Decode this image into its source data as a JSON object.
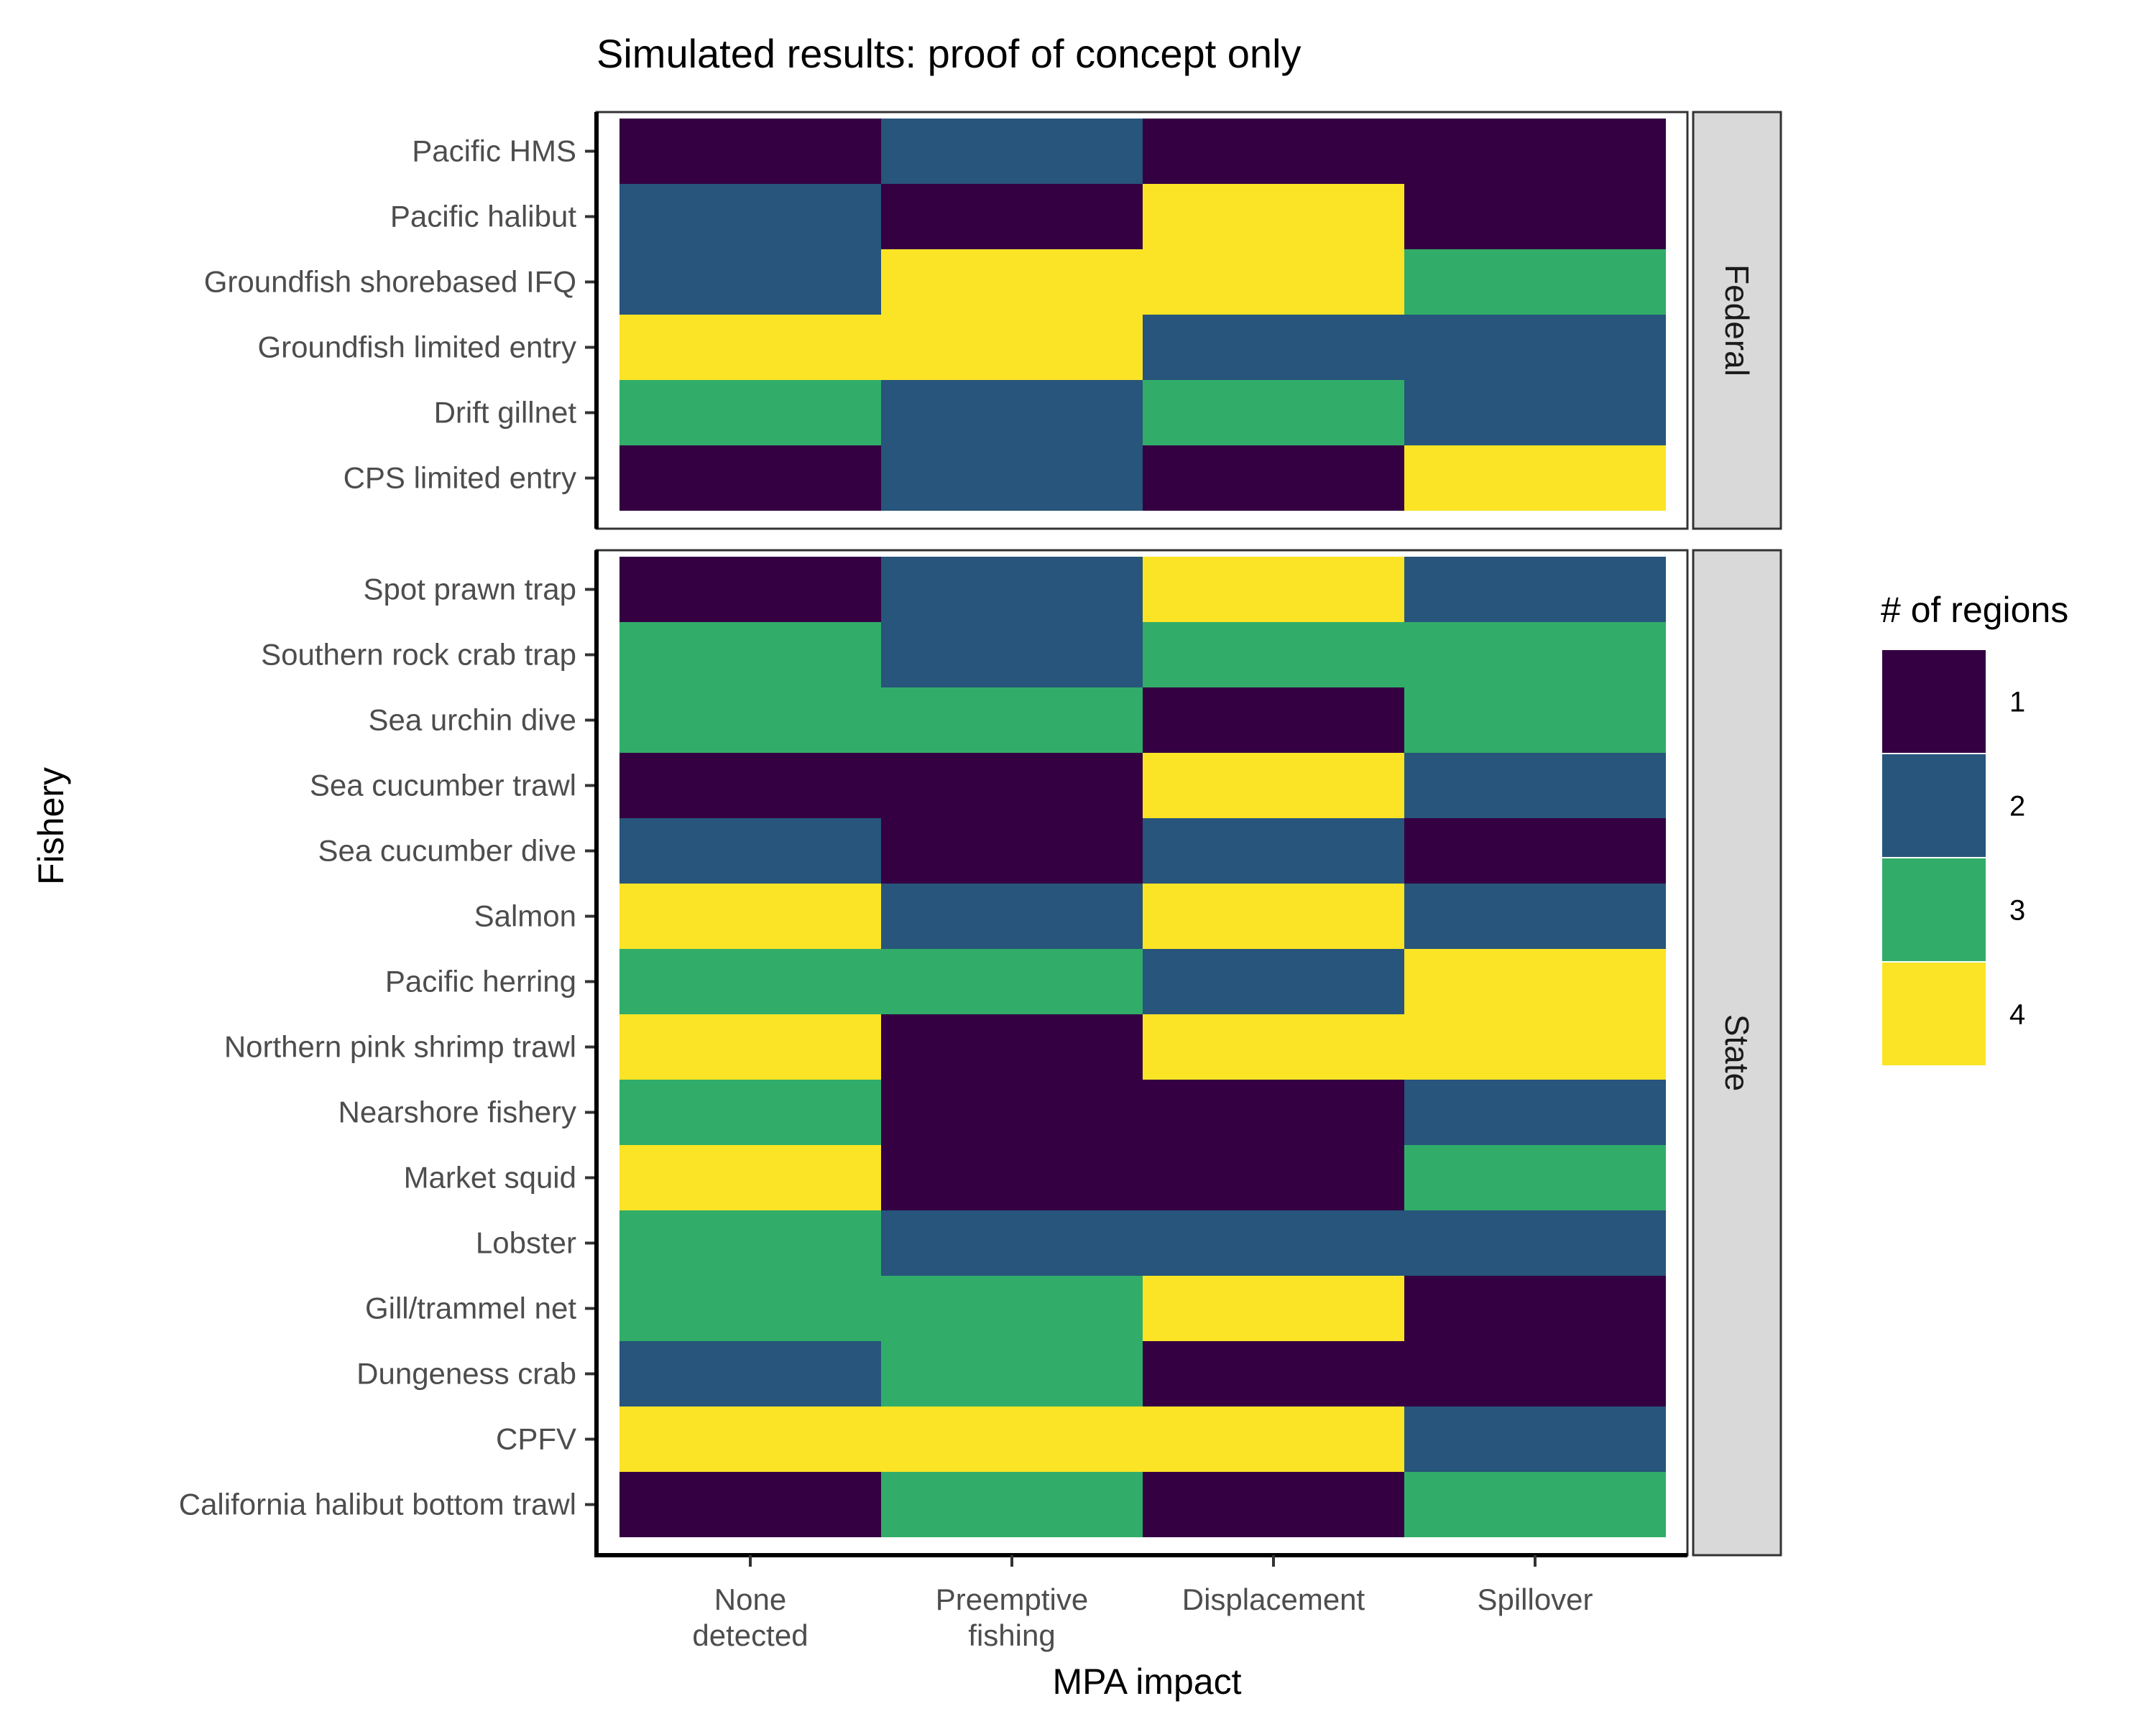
{
  "chart_data": {
    "type": "heatmap",
    "title": "Simulated results: proof of concept only",
    "xlabel": "MPA impact",
    "ylabel": "Fishery",
    "x_categories": [
      "None\ndetected",
      "Preemptive\nfishing",
      "Displacement",
      "Spillover"
    ],
    "facets": [
      {
        "name": "Federal",
        "rows": [
          {
            "label": "Pacific HMS",
            "values": [
              1,
              2,
              1,
              1
            ]
          },
          {
            "label": "Pacific halibut",
            "values": [
              2,
              1,
              4,
              1
            ]
          },
          {
            "label": "Groundfish shorebased IFQ",
            "values": [
              2,
              4,
              4,
              3
            ]
          },
          {
            "label": "Groundfish limited entry",
            "values": [
              4,
              4,
              2,
              2
            ]
          },
          {
            "label": "Drift gillnet",
            "values": [
              3,
              2,
              3,
              2
            ]
          },
          {
            "label": "CPS limited entry",
            "values": [
              1,
              2,
              1,
              4
            ]
          }
        ]
      },
      {
        "name": "State",
        "rows": [
          {
            "label": "Spot prawn trap",
            "values": [
              1,
              2,
              4,
              2
            ]
          },
          {
            "label": "Southern rock crab trap",
            "values": [
              3,
              2,
              3,
              3
            ]
          },
          {
            "label": "Sea urchin dive",
            "values": [
              3,
              3,
              1,
              3
            ]
          },
          {
            "label": "Sea cucumber trawl",
            "values": [
              1,
              1,
              4,
              2
            ]
          },
          {
            "label": "Sea cucumber dive",
            "values": [
              2,
              1,
              2,
              1
            ]
          },
          {
            "label": "Salmon",
            "values": [
              4,
              2,
              4,
              2
            ]
          },
          {
            "label": "Pacific herring",
            "values": [
              3,
              3,
              2,
              4
            ]
          },
          {
            "label": "Northern pink shrimp trawl",
            "values": [
              4,
              1,
              4,
              4
            ]
          },
          {
            "label": "Nearshore fishery",
            "values": [
              3,
              1,
              1,
              2
            ]
          },
          {
            "label": "Market squid",
            "values": [
              4,
              1,
              1,
              3
            ]
          },
          {
            "label": "Lobster",
            "values": [
              3,
              2,
              2,
              2
            ]
          },
          {
            "label": "Gill/trammel net",
            "values": [
              3,
              3,
              4,
              1
            ]
          },
          {
            "label": "Dungeness crab",
            "values": [
              2,
              3,
              1,
              1
            ]
          },
          {
            "label": "CPFV",
            "values": [
              4,
              4,
              4,
              2
            ]
          },
          {
            "label": "California halibut bottom trawl",
            "values": [
              1,
              3,
              1,
              3
            ]
          }
        ]
      }
    ],
    "legend": {
      "title": "# of regions",
      "position": "right",
      "levels": [
        {
          "value": "1",
          "color": "#340042"
        },
        {
          "value": "2",
          "color": "#27557b"
        },
        {
          "value": "3",
          "color": "#31ad69"
        },
        {
          "value": "4",
          "color": "#fbe426"
        }
      ]
    }
  }
}
